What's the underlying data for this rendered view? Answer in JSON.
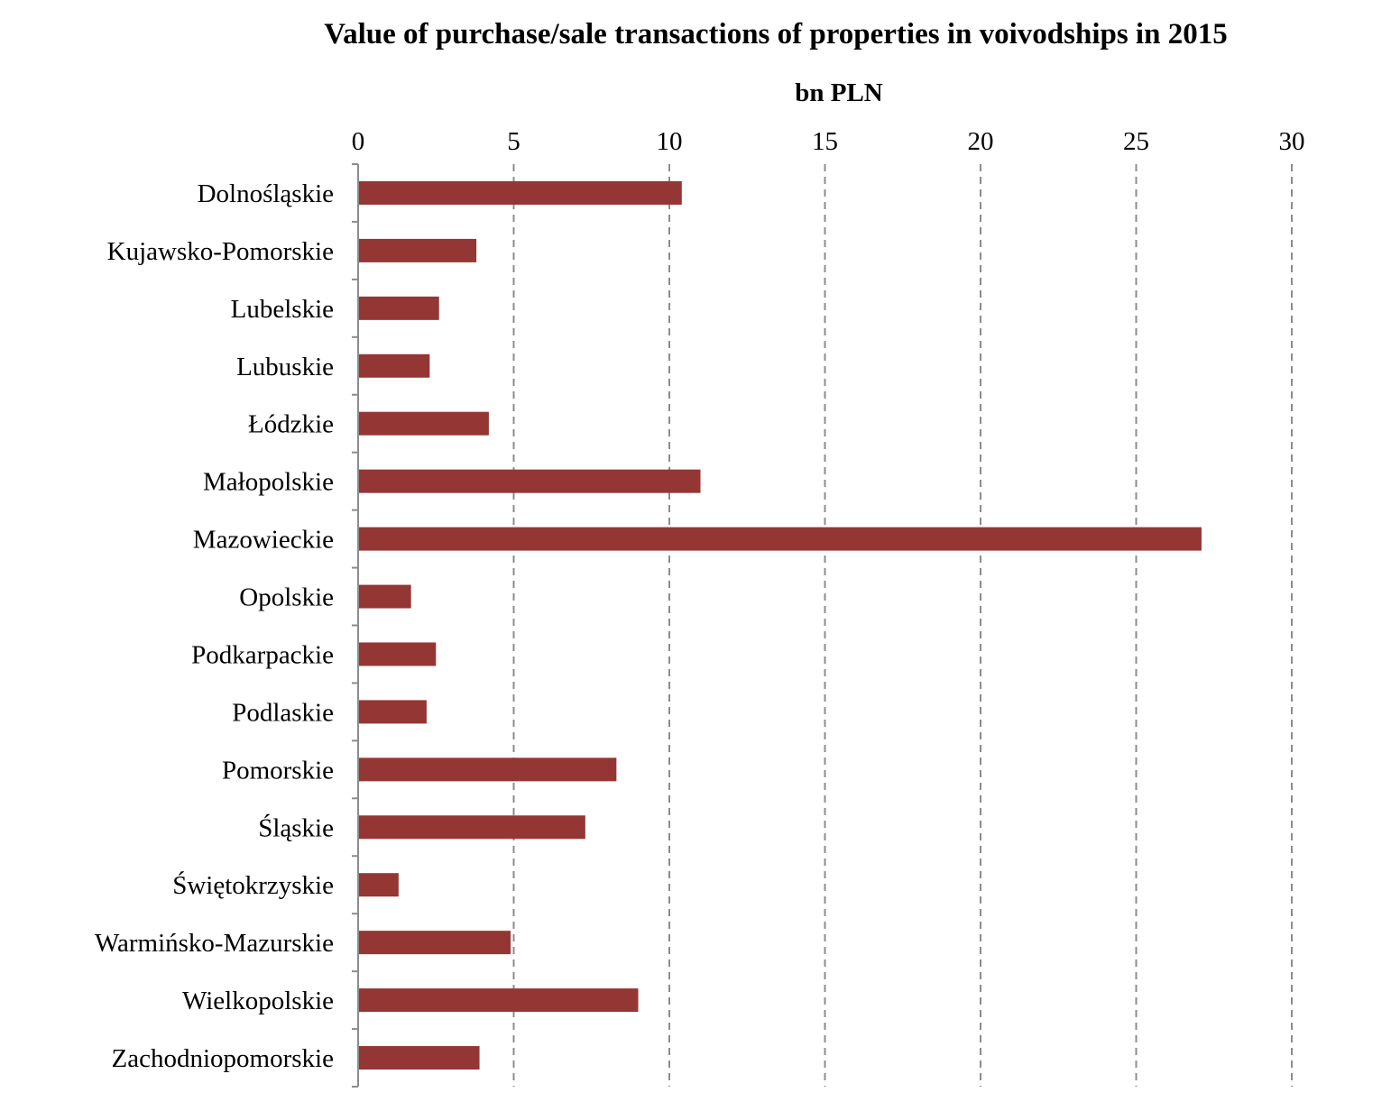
{
  "chart_data": {
    "type": "bar",
    "orientation": "horizontal",
    "title": "Value of purchase/sale transactions of properties in voivodships in 2015",
    "unit_label": "bn PLN",
    "x_axis_position": "top",
    "xlim": [
      0,
      30
    ],
    "x_ticks": [
      0,
      5,
      10,
      15,
      20,
      25,
      30
    ],
    "grid": true,
    "grid_style": "dashed vertical",
    "legend": "none",
    "bar_color": "#943634",
    "categories": [
      "Dolnośląskie",
      "Kujawsko-Pomorskie",
      "Lubelskie",
      "Lubuskie",
      "Łódzkie",
      "Małopolskie",
      "Mazowieckie",
      "Opolskie",
      "Podkarpackie",
      "Podlaskie",
      "Pomorskie",
      "Śląskie",
      "Świętokrzyskie",
      "Warmińsko-Mazurskie",
      "Wielkopolskie",
      "Zachodniopomorskie"
    ],
    "values": [
      10.4,
      3.8,
      2.6,
      2.3,
      4.2,
      11.0,
      27.1,
      1.7,
      2.5,
      2.2,
      8.3,
      7.3,
      1.3,
      4.9,
      9.0,
      3.9
    ]
  }
}
